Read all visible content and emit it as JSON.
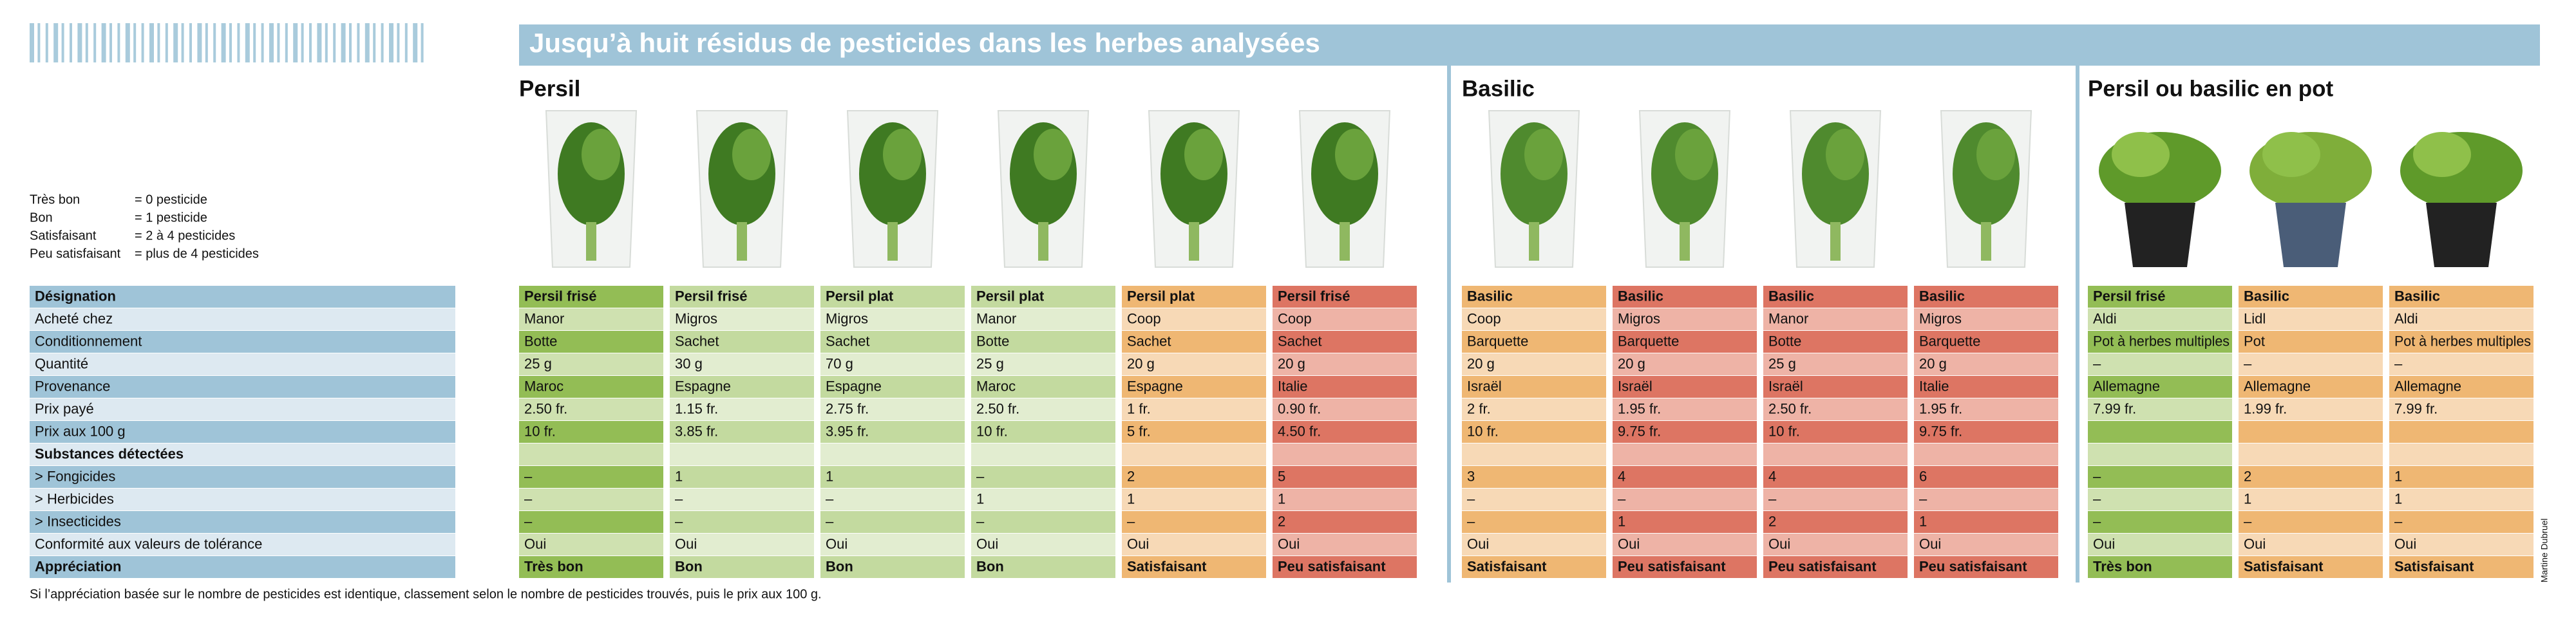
{
  "header": {
    "title": "Jusqu’à huit résidus de pesticides dans les herbes analysées"
  },
  "legend": [
    {
      "label": "Très bon",
      "text": "= 0 pesticide"
    },
    {
      "label": "Bon",
      "text": "= 1 pesticide"
    },
    {
      "label": "Satisfaisant",
      "text": "= 2 à 4 pesticides"
    },
    {
      "label": "Peu satisfaisant",
      "text": "= plus de 4 pesticides"
    }
  ],
  "table": {
    "label_colors": [
      "#9fc4d8",
      "#dde9f1"
    ],
    "row_labels": [
      "Désignation",
      "Acheté chez",
      "Conditionnement",
      "Quantité",
      "Provenance",
      "Prix payé",
      "Prix aux 100 g",
      "Substances détectées",
      "> Fongicides",
      "> Herbicides",
      "> Insecticides",
      "Conformité aux valeurs de tolérance",
      "Appréciation"
    ],
    "sections": [
      {
        "title": "Persil",
        "products": [
          {
            "colors": [
              "#93bd55",
              "#cfe1b0"
            ],
            "cells": [
              "Persil frisé",
              "Manor",
              "Botte",
              "25 g",
              "Maroc",
              "2.50 fr.",
              "10 fr.",
              null,
              "–",
              "–",
              "–",
              "Oui",
              "Très bon"
            ]
          },
          {
            "colors": [
              "#c3da9f",
              "#e2edd0"
            ],
            "cells": [
              "Persil frisé",
              "Migros",
              "Sachet",
              "30 g",
              "Espagne",
              "1.15 fr.",
              "3.85 fr.",
              null,
              "1",
              "–",
              "–",
              "Oui",
              "Bon"
            ]
          },
          {
            "colors": [
              "#c3da9f",
              "#e2edd0"
            ],
            "cells": [
              "Persil plat",
              "Migros",
              "Sachet",
              "70 g",
              "Espagne",
              "2.75 fr.",
              "3.95 fr.",
              null,
              "1",
              "–",
              "–",
              "Oui",
              "Bon"
            ]
          },
          {
            "colors": [
              "#c3da9f",
              "#e2edd0"
            ],
            "cells": [
              "Persil plat",
              "Manor",
              "Botte",
              "25 g",
              "Maroc",
              "2.50 fr.",
              "10 fr.",
              null,
              "–",
              "1",
              "–",
              "Oui",
              "Bon"
            ]
          },
          {
            "colors": [
              "#efb773",
              "#f7d9b6"
            ],
            "cells": [
              "Persil plat",
              "Coop",
              "Sachet",
              "20 g",
              "Espagne",
              "1 fr.",
              "5 fr.",
              null,
              "2",
              "1",
              "–",
              "Oui",
              "Satisfaisant"
            ]
          },
          {
            "colors": [
              "#dd7563",
              "#eeb3a6"
            ],
            "cells": [
              "Persil frisé",
              "Coop",
              "Sachet",
              "20 g",
              "Italie",
              "0.90 fr.",
              "4.50 fr.",
              null,
              "5",
              "1",
              "2",
              "Oui",
              "Peu satisfaisant"
            ]
          }
        ]
      },
      {
        "title": "Basilic",
        "products": [
          {
            "colors": [
              "#efb773",
              "#f7d9b6"
            ],
            "cells": [
              "Basilic",
              "Coop",
              "Barquette",
              "20 g",
              "Israël",
              "2 fr.",
              "10 fr.",
              null,
              "3",
              "–",
              "–",
              "Oui",
              "Satisfaisant"
            ]
          },
          {
            "colors": [
              "#dd7563",
              "#eeb3a6"
            ],
            "cells": [
              "Basilic",
              "Migros",
              "Barquette",
              "20 g",
              "Israël",
              "1.95 fr.",
              "9.75 fr.",
              null,
              "4",
              "–",
              "1",
              "Oui",
              "Peu satisfaisant"
            ]
          },
          {
            "colors": [
              "#dd7563",
              "#eeb3a6"
            ],
            "cells": [
              "Basilic",
              "Manor",
              "Botte",
              "25 g",
              "Israël",
              "2.50 fr.",
              "10 fr.",
              null,
              "4",
              "–",
              "2",
              "Oui",
              "Peu satisfaisant"
            ]
          },
          {
            "colors": [
              "#dd7563",
              "#eeb3a6"
            ],
            "cells": [
              "Basilic",
              "Migros",
              "Barquette",
              "20 g",
              "Italie",
              "1.95 fr.",
              "9.75 fr.",
              null,
              "6",
              "–",
              "1",
              "Oui",
              "Peu satisfaisant"
            ]
          }
        ]
      },
      {
        "title": "Persil ou basilic en pot",
        "products": [
          {
            "colors": [
              "#93bd55",
              "#cfe1b0"
            ],
            "cells": [
              "Persil frisé",
              "Aldi",
              "Pot à herbes multiples",
              "–",
              "Allemagne",
              "7.99 fr.",
              null,
              null,
              "–",
              "–",
              "–",
              "Oui",
              "Très bon"
            ]
          },
          {
            "colors": [
              "#efb773",
              "#f7d9b6"
            ],
            "cells": [
              "Basilic",
              "Lidl",
              "Pot",
              "–",
              "Allemagne",
              "1.99 fr.",
              null,
              null,
              "2",
              "1",
              "–",
              "Oui",
              "Satisfaisant"
            ]
          },
          {
            "colors": [
              "#efb773",
              "#f7d9b6"
            ],
            "cells": [
              "Basilic",
              "Aldi",
              "Pot à herbes multiples",
              "–",
              "Allemagne",
              "7.99 fr.",
              null,
              null,
              "1",
              "1",
              "–",
              "Oui",
              "Satisfaisant"
            ]
          }
        ]
      }
    ]
  },
  "footnote": "Si l’appréciation basée sur le nombre de pesticides est identique, classement selon le nombre de pesticides trouvés, puis le prix aux 100 g.",
  "credit": "Martine Dubruel"
}
